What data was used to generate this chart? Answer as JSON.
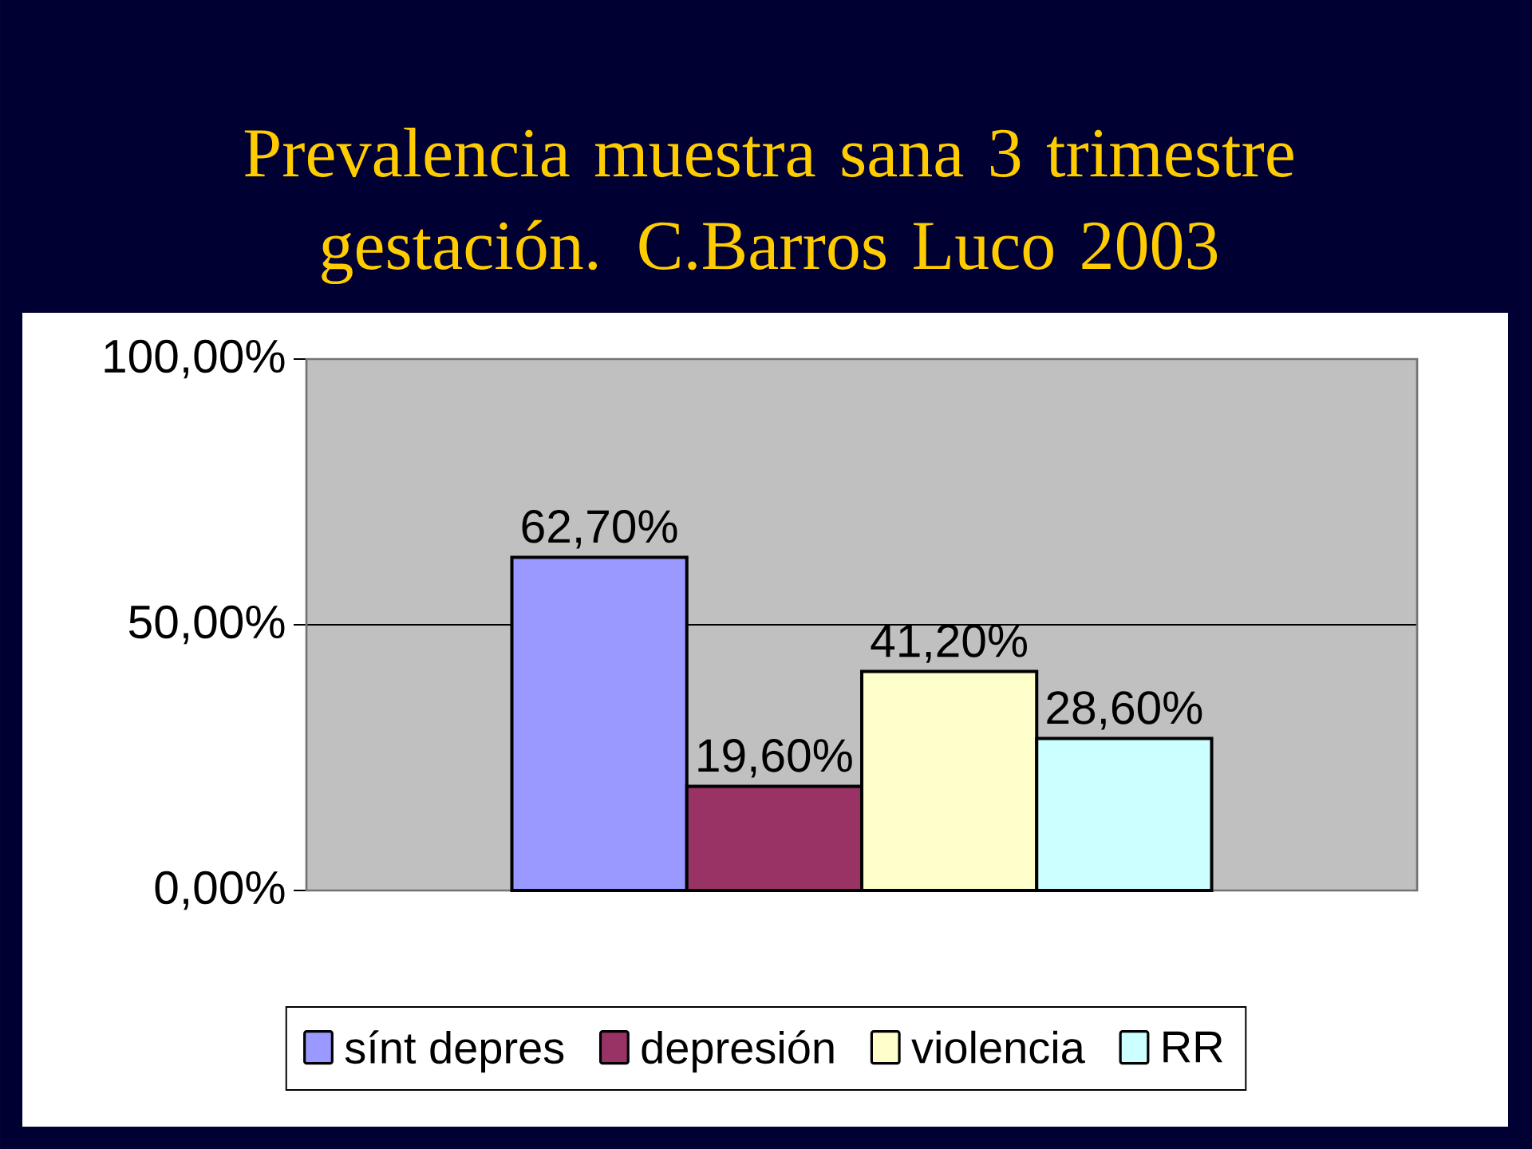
{
  "chart_data": {
    "type": "bar",
    "title": "Prevalencia muestra sana 3 trimestre gestación. C.Barros Luco 2003",
    "categories": [
      null
    ],
    "series": [
      {
        "name": "sínt depres",
        "color": "#9999ff",
        "values": [
          62.7
        ],
        "value_labels": [
          "62,70%"
        ]
      },
      {
        "name": "depresión",
        "color": "#993366",
        "values": [
          19.6
        ],
        "value_labels": [
          "19,60%"
        ]
      },
      {
        "name": "violencia",
        "color": "#ffffcc",
        "values": [
          41.2
        ],
        "value_labels": [
          "41,20%"
        ]
      },
      {
        "name": "RR",
        "color": "#ccffff",
        "values": [
          28.6
        ],
        "value_labels": [
          "28,60%"
        ]
      }
    ],
    "ylim": [
      0,
      100
    ],
    "yticks": [
      {
        "value": 0,
        "label": "0,00%"
      },
      {
        "value": 50,
        "label": "50,00%"
      },
      {
        "value": 100,
        "label": "100,00%"
      }
    ],
    "grid": "y",
    "legend": "bottom"
  }
}
